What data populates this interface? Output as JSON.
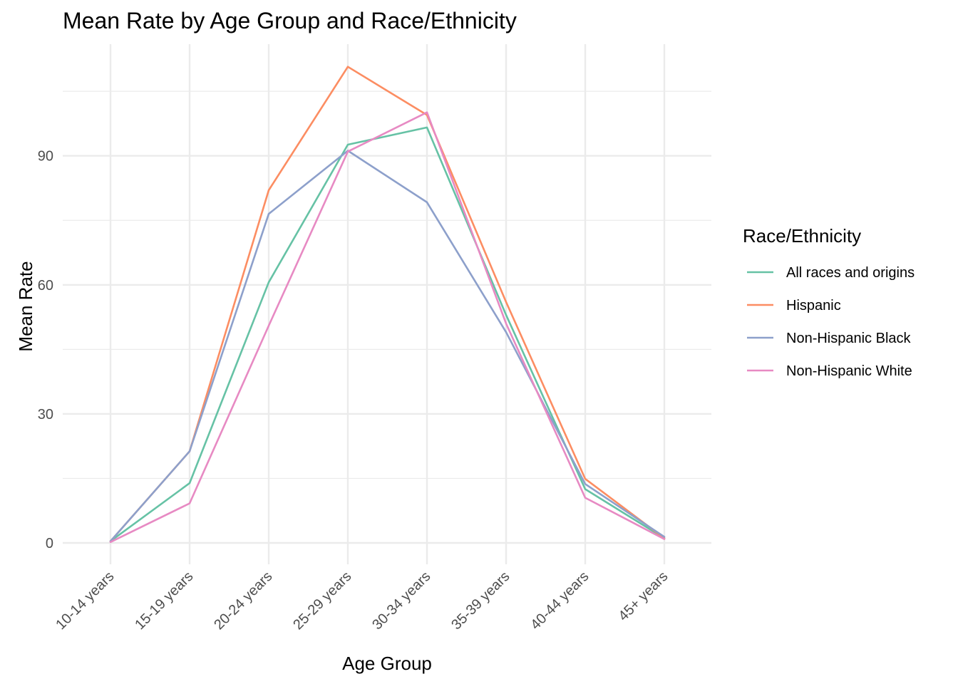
{
  "chart_data": {
    "type": "line",
    "title": "Mean Rate by Age Group and Race/Ethnicity",
    "xlabel": "Age Group",
    "ylabel": "Mean Rate",
    "categories": [
      "10-14 years",
      "15-19 years",
      "20-24 years",
      "25-29 years",
      "30-34 years",
      "35-39 years",
      "40-44 years",
      "45+ years"
    ],
    "ylim": [
      -4.5,
      115.5
    ],
    "y_ticks": [
      0,
      30,
      60,
      90
    ],
    "y_tick_labels": [
      "0",
      "30",
      "60",
      "90"
    ],
    "grid": true,
    "legend": {
      "title": "Race/Ethnicity",
      "placement": "right"
    },
    "series": [
      {
        "name": "All races and origins",
        "color": "#66c2a5",
        "values": [
          0.4,
          13.9,
          60.6,
          92.6,
          96.6,
          53.0,
          12.5,
          1.1
        ]
      },
      {
        "name": "Hispanic",
        "color": "#fc8d62",
        "values": [
          0.4,
          21.3,
          82.0,
          110.7,
          99.5,
          56.0,
          14.9,
          1.1
        ]
      },
      {
        "name": "Non-Hispanic Black",
        "color": "#8da0cb",
        "values": [
          0.4,
          21.3,
          76.5,
          91.2,
          79.2,
          49.0,
          13.7,
          1.4
        ]
      },
      {
        "name": "Non-Hispanic White",
        "color": "#e78ac3",
        "values": [
          0.2,
          9.2,
          50.5,
          91.0,
          100.1,
          51.0,
          10.5,
          0.9
        ]
      }
    ]
  }
}
